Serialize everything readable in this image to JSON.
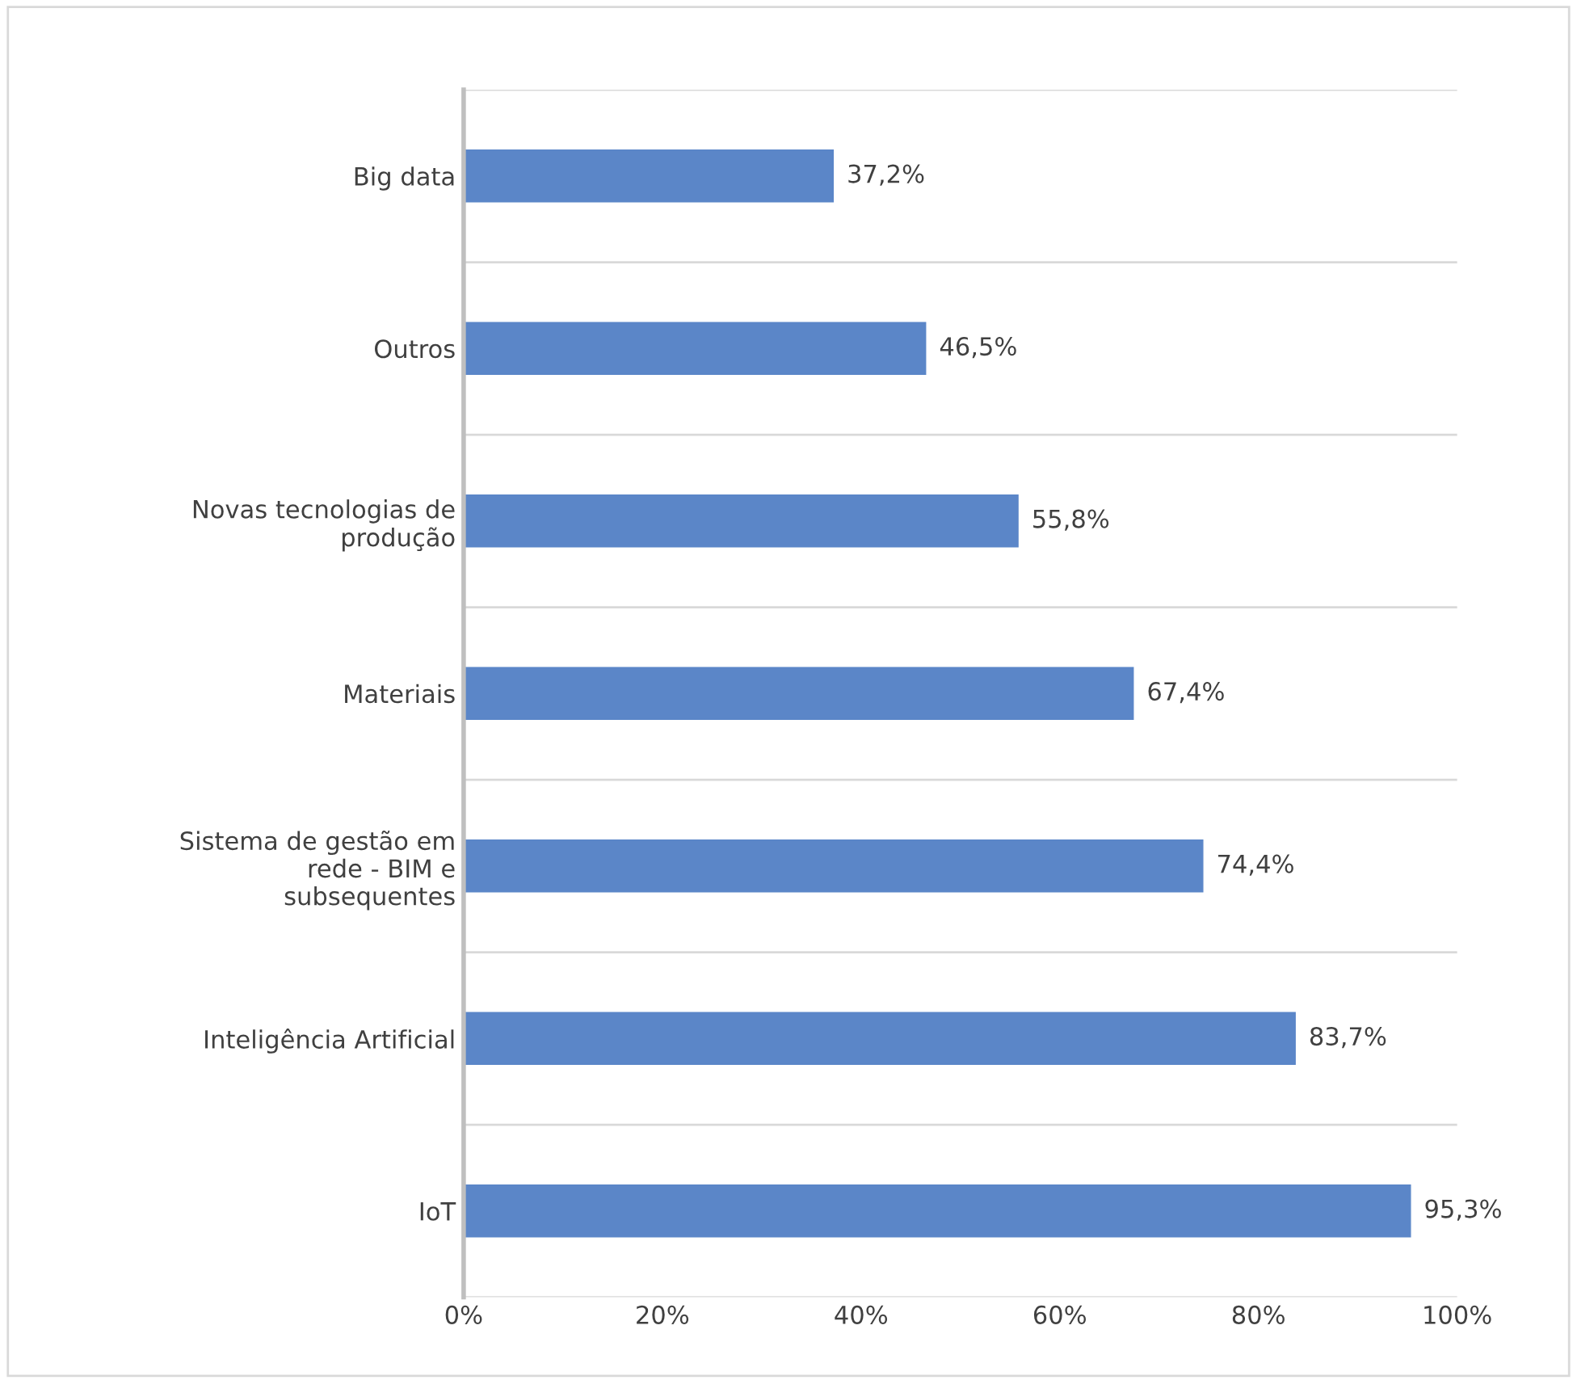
{
  "chart_data": {
    "type": "bar",
    "orientation": "horizontal",
    "categories": [
      "Big data",
      "Outros",
      "Novas tecnologias de\nprodução",
      "Materiais",
      "Sistema de gestão em\nrede - BIM e\nsubsequentes",
      "Inteligência Artificial",
      "IoT"
    ],
    "values": [
      37.2,
      46.5,
      55.8,
      67.4,
      74.4,
      83.7,
      95.3
    ],
    "value_labels": [
      "37,2%",
      "46,5%",
      "55,8%",
      "67,4%",
      "74,4%",
      "83,7%",
      "95,3%"
    ],
    "color": "#5b86c8",
    "xlim": [
      0,
      100
    ],
    "xticks": [
      {
        "value": 0,
        "label": "0%"
      },
      {
        "value": 20,
        "label": "20%"
      },
      {
        "value": 40,
        "label": "40%"
      },
      {
        "value": 60,
        "label": "60%"
      },
      {
        "value": 80,
        "label": "80%"
      },
      {
        "value": 100,
        "label": "100%"
      }
    ],
    "grid": "y"
  }
}
